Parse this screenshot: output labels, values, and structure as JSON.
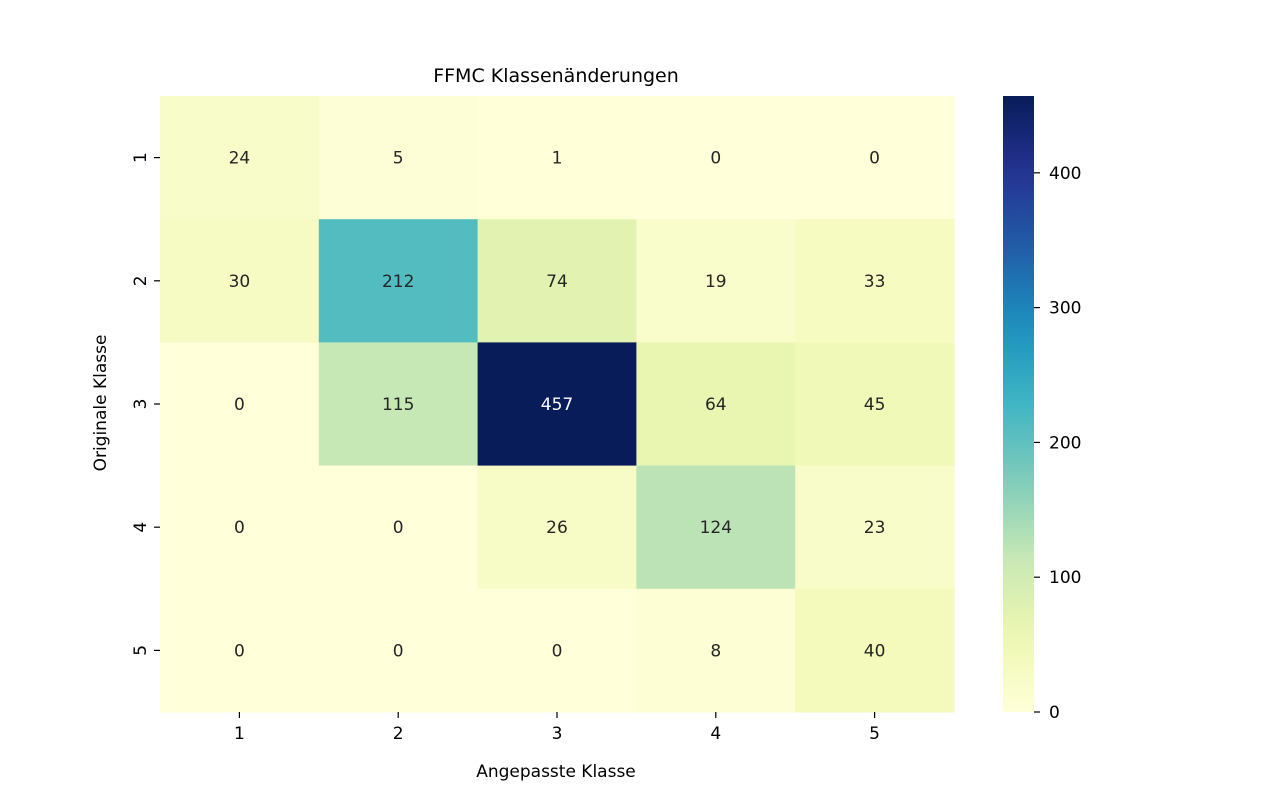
{
  "chart_data": {
    "type": "heatmap",
    "title": "FFMC Klassenänderungen",
    "xlabel": "Angepasste Klasse",
    "ylabel": "Originale Klasse",
    "x_categories": [
      "1",
      "2",
      "3",
      "4",
      "5"
    ],
    "y_categories": [
      "1",
      "2",
      "3",
      "4",
      "5"
    ],
    "values": [
      [
        24,
        5,
        1,
        0,
        0
      ],
      [
        30,
        212,
        74,
        19,
        33
      ],
      [
        0,
        115,
        457,
        64,
        45
      ],
      [
        0,
        0,
        26,
        124,
        23
      ],
      [
        0,
        0,
        0,
        8,
        40
      ]
    ],
    "colormap": "YlGnBu",
    "color_range": [
      0,
      457
    ],
    "colorbar_ticks": [
      0,
      100,
      200,
      300,
      400
    ],
    "colorbar_ticks_labels": [
      "0",
      "100",
      "200",
      "300",
      "400"
    ],
    "grid": false,
    "legend_position": "right"
  }
}
